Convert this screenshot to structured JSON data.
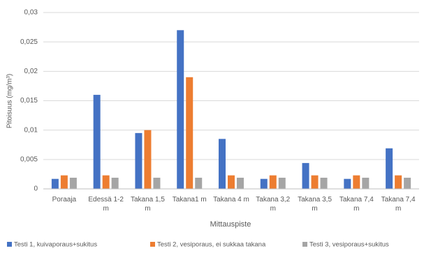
{
  "chart_data": {
    "type": "bar",
    "x_label": "Mittauspiste",
    "y_label": "Pitoisuus (mg/m³)",
    "categories": [
      "Poraaja",
      "Edessä 1-2 m",
      "Takana 1,5 m",
      "Takana1 m",
      "Takana 4 m",
      "Takana 3,2 m",
      "Takana 3,5 m",
      "Takana 7,4 m",
      "Takana 7,4 m"
    ],
    "series": [
      {
        "name": "Testi 1, kuivaporaus+sukitus",
        "color": "#4472c4",
        "values": [
          0.0017,
          0.016,
          0.0095,
          0.027,
          0.0085,
          0.0017,
          0.0044,
          0.0017,
          0.0069
        ]
      },
      {
        "name": "Testi 2, vesiporaus, ei sukkaa takana",
        "color": "#ed7d31",
        "values": [
          0.0023,
          0.0023,
          0.01,
          0.019,
          0.0023,
          0.0023,
          0.0023,
          0.0023,
          0.0023
        ]
      },
      {
        "name": "Testi 3, vesiporaus+sukitus",
        "color": "#a5a5a5",
        "values": [
          0.0019,
          0.0019,
          0.0019,
          0.0019,
          0.0019,
          0.0019,
          0.0019,
          0.0019,
          0.0019
        ]
      }
    ],
    "ylim": [
      0,
      0.03
    ],
    "yticks": [
      0,
      {
        "value": 0.005,
        "label": "0,005"
      },
      {
        "value": 0.01,
        "label": "0,01"
      },
      {
        "value": 0.015,
        "label": "0,015"
      },
      {
        "value": 0.02,
        "label": "0,02"
      },
      {
        "value": 0.025,
        "label": "0,025"
      },
      {
        "value": 0.03,
        "label": "0,03"
      }
    ],
    "grid": true,
    "legend": "bottom"
  }
}
